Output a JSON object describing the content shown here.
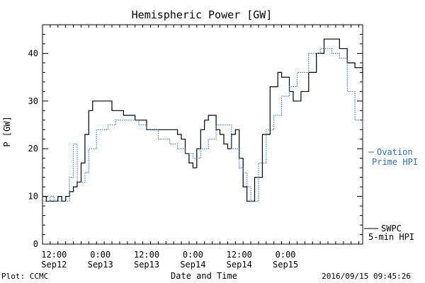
{
  "chart_data": {
    "type": "line",
    "title": "Hemispheric Power [GW]",
    "xlabel": "Date and Time",
    "ylabel": "P [GW]",
    "ylim": [
      0,
      46
    ],
    "xlim": [
      "2016-09-12 09:00",
      "2016-09-15 20:00"
    ],
    "yticks": [
      0,
      10,
      20,
      30,
      40
    ],
    "x_tick_labels": [
      {
        "t": "2016-09-12 12:00",
        "line1": "12:00",
        "line2": "Sep12"
      },
      {
        "t": "2016-09-13 00:00",
        "line1": "0:00",
        "line2": "Sep13"
      },
      {
        "t": "2016-09-13 12:00",
        "line1": "12:00",
        "line2": "Sep13"
      },
      {
        "t": "2016-09-14 00:00",
        "line1": "0:00",
        "line2": "Sep14"
      },
      {
        "t": "2016-09-14 12:00",
        "line1": "12:00",
        "line2": "Sep14"
      },
      {
        "t": "2016-09-15 00:00",
        "line1": "0:00",
        "line2": "Sep15"
      }
    ],
    "grid": false,
    "legend_position": "right",
    "series": [
      {
        "name": "SWPC 5-min HPI",
        "legend_lines": [
          "SWPC",
          "5-min HPI"
        ],
        "color": "#000000",
        "style": "solid",
        "x": [
          "2016-09-12 09:00",
          "2016-09-12 10:00",
          "2016-09-12 11:00",
          "2016-09-12 12:00",
          "2016-09-12 13:00",
          "2016-09-12 14:00",
          "2016-09-12 15:00",
          "2016-09-12 16:00",
          "2016-09-12 17:00",
          "2016-09-12 18:00",
          "2016-09-12 19:00",
          "2016-09-12 20:00",
          "2016-09-12 21:00",
          "2016-09-12 22:00",
          "2016-09-13 00:00",
          "2016-09-13 03:00",
          "2016-09-13 06:00",
          "2016-09-13 09:00",
          "2016-09-13 12:00",
          "2016-09-13 15:00",
          "2016-09-13 18:00",
          "2016-09-13 20:00",
          "2016-09-13 21:00",
          "2016-09-13 22:00",
          "2016-09-13 23:00",
          "2016-09-14 00:00",
          "2016-09-14 01:00",
          "2016-09-14 02:00",
          "2016-09-14 03:00",
          "2016-09-14 04:00",
          "2016-09-14 06:00",
          "2016-09-14 07:00",
          "2016-09-14 08:00",
          "2016-09-14 09:00",
          "2016-09-14 10:00",
          "2016-09-14 11:00",
          "2016-09-14 12:00",
          "2016-09-14 13:00",
          "2016-09-14 14:00",
          "2016-09-14 16:00",
          "2016-09-14 18:00",
          "2016-09-14 20:00",
          "2016-09-14 22:00",
          "2016-09-14 23:00",
          "2016-09-15 01:00",
          "2016-09-15 02:00",
          "2016-09-15 04:00",
          "2016-09-15 06:00",
          "2016-09-15 08:00",
          "2016-09-15 10:00",
          "2016-09-15 12:00",
          "2016-09-15 14:00",
          "2016-09-15 16:00",
          "2016-09-15 18:00",
          "2016-09-15 20:00"
        ],
        "y": [
          10,
          9,
          9,
          9,
          10,
          9,
          10,
          11,
          12,
          13,
          17,
          23,
          28,
          30,
          30,
          28,
          27,
          26,
          24,
          24,
          24,
          23,
          22,
          19,
          17,
          16,
          20,
          24,
          26,
          27,
          24,
          23,
          21,
          20,
          23,
          24,
          18,
          12,
          9,
          14,
          23,
          33,
          36,
          35,
          32,
          30,
          32,
          36,
          40,
          43,
          43,
          41,
          38,
          37,
          35
        ]
      },
      {
        "name": "Ovation Prime HPI",
        "legend_lines": [
          "Ovation",
          "Prime HPI"
        ],
        "color": "#2f6fc4",
        "style": "dotted",
        "x": [
          "2016-09-12 09:00",
          "2016-09-12 11:00",
          "2016-09-12 12:00",
          "2016-09-12 13:00",
          "2016-09-12 14:00",
          "2016-09-12 16:00",
          "2016-09-12 17:00",
          "2016-09-12 18:00",
          "2016-09-12 20:00",
          "2016-09-12 21:00",
          "2016-09-12 23:00",
          "2016-09-13 00:00",
          "2016-09-13 02:00",
          "2016-09-13 04:00",
          "2016-09-13 06:00",
          "2016-09-13 08:00",
          "2016-09-13 10:00",
          "2016-09-13 12:00",
          "2016-09-13 15:00",
          "2016-09-13 18:00",
          "2016-09-13 20:00",
          "2016-09-13 22:00",
          "2016-09-14 00:00",
          "2016-09-14 02:00",
          "2016-09-14 04:00",
          "2016-09-14 06:00",
          "2016-09-14 08:00",
          "2016-09-14 10:00",
          "2016-09-14 12:00",
          "2016-09-14 13:00",
          "2016-09-14 14:00",
          "2016-09-14 15:00",
          "2016-09-14 16:00",
          "2016-09-14 17:00",
          "2016-09-14 19:00",
          "2016-09-14 21:00",
          "2016-09-14 23:00",
          "2016-09-15 01:00",
          "2016-09-15 03:00",
          "2016-09-15 06:00",
          "2016-09-15 09:00",
          "2016-09-15 12:00",
          "2016-09-15 14:00",
          "2016-09-15 16:00",
          "2016-09-15 18:00",
          "2016-09-15 20:00"
        ],
        "y": [
          9,
          10,
          9,
          9,
          9,
          14,
          21,
          13,
          15,
          20,
          24,
          24,
          25,
          26,
          26,
          26,
          25,
          24,
          22,
          21,
          20,
          19,
          18,
          20,
          22,
          25,
          25,
          20,
          16,
          15,
          12,
          9,
          9,
          17,
          24,
          27,
          31,
          33,
          36,
          40,
          41,
          40,
          39,
          32,
          26,
          24
        ]
      }
    ]
  },
  "footer": {
    "plot_credit": "Plot: CCMC",
    "timestamp": "2016/09/15 09:45:26"
  }
}
